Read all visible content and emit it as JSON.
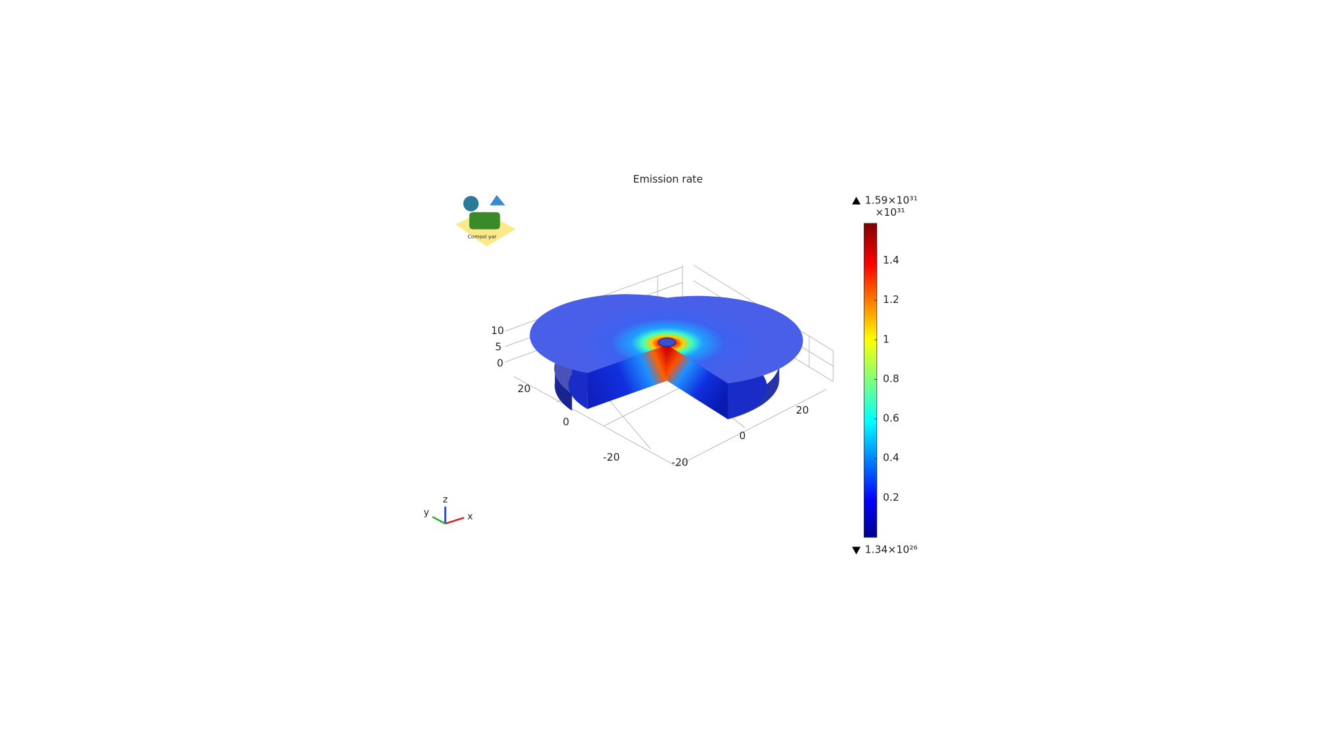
{
  "chart_data": {
    "type": "surface3d",
    "title": "Emission rate",
    "watermark": "Comsol yar",
    "colorbar": {
      "colormap": "jet",
      "clim": [
        1.34e-05,
        1.59
      ],
      "ticks": [
        0.2,
        0.4,
        0.6,
        0.8,
        1,
        1.2,
        1.4
      ],
      "max_label": "1.59×10³¹",
      "min_label": "1.34×10²⁶",
      "scale_label": "×10³¹"
    },
    "zticks": [
      0,
      5,
      10
    ],
    "yticks": [
      20,
      0,
      -20
    ],
    "xticks": [
      -20,
      0,
      20
    ],
    "axis_labels": [
      "x",
      "y",
      "z"
    ]
  }
}
